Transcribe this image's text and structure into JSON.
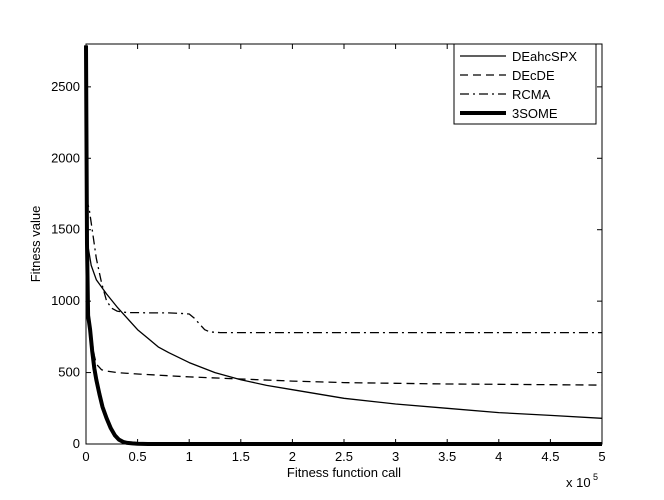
{
  "chart_data": {
    "type": "line",
    "title": "",
    "xlabel": "Fitness function call",
    "ylabel": "Fitness value",
    "x_multiplier_label": "x 10",
    "x_multiplier_exponent": "5",
    "xlim": [
      0,
      5
    ],
    "ylim": [
      0,
      2800
    ],
    "xticks": [
      0,
      0.5,
      1,
      1.5,
      2,
      2.5,
      3,
      3.5,
      4,
      4.5,
      5
    ],
    "xtick_labels": [
      "0",
      "0.5",
      "1",
      "1.5",
      "2",
      "2.5",
      "3",
      "3.5",
      "4",
      "4.5",
      "5"
    ],
    "yticks": [
      0,
      500,
      1000,
      1500,
      2000,
      2500
    ],
    "ytick_labels": [
      "0",
      "500",
      "1000",
      "1500",
      "2000",
      "2500"
    ],
    "grid": false,
    "legend_position": "top-right",
    "series": [
      {
        "name": "DEahcSPX",
        "style": "solid",
        "width": "thin",
        "x": [
          0.0,
          0.02,
          0.05,
          0.1,
          0.2,
          0.3,
          0.4,
          0.5,
          0.6,
          0.7,
          0.8,
          1.0,
          1.25,
          1.5,
          1.75,
          2.0,
          2.5,
          3.0,
          3.5,
          4.0,
          4.5,
          5.0
        ],
        "y": [
          1850,
          1380,
          1250,
          1150,
          1050,
          960,
          880,
          800,
          740,
          680,
          640,
          570,
          500,
          450,
          410,
          380,
          320,
          280,
          250,
          220,
          200,
          180
        ]
      },
      {
        "name": "DEcDE",
        "style": "dashed",
        "width": "thin",
        "x": [
          0.0,
          0.02,
          0.05,
          0.08,
          0.1,
          0.15,
          0.2,
          0.3,
          0.5,
          1.0,
          1.5,
          2.0,
          2.5,
          3.0,
          3.5,
          4.0,
          4.5,
          5.0
        ],
        "y": [
          1000,
          900,
          760,
          620,
          560,
          520,
          510,
          500,
          490,
          470,
          455,
          440,
          430,
          425,
          420,
          418,
          415,
          412
        ]
      },
      {
        "name": "RCMA",
        "style": "dashdot",
        "width": "thin",
        "x": [
          0.0,
          0.03,
          0.06,
          0.1,
          0.15,
          0.2,
          0.25,
          0.3,
          0.35,
          0.4,
          0.5,
          0.6,
          0.7,
          0.8,
          0.9,
          1.0,
          1.05,
          1.1,
          1.15,
          1.2,
          1.3,
          1.5,
          2.0,
          3.0,
          4.0,
          5.0
        ],
        "y": [
          1720,
          1650,
          1500,
          1300,
          1130,
          1000,
          950,
          930,
          925,
          920,
          920,
          918,
          918,
          918,
          915,
          910,
          880,
          840,
          800,
          785,
          780,
          780,
          780,
          780,
          780,
          780
        ]
      },
      {
        "name": "3SOME",
        "style": "solid",
        "width": "thick",
        "x": [
          0.0,
          0.01,
          0.02,
          0.04,
          0.06,
          0.08,
          0.1,
          0.13,
          0.16,
          0.2,
          0.24,
          0.28,
          0.32,
          0.36,
          0.4,
          0.45,
          0.5,
          0.6,
          0.7,
          1.0,
          2.0,
          5.0
        ],
        "y": [
          2790,
          1400,
          900,
          800,
          650,
          530,
          450,
          350,
          260,
          180,
          110,
          60,
          30,
          15,
          8,
          4,
          2,
          0,
          0,
          0,
          0,
          0
        ]
      }
    ]
  }
}
